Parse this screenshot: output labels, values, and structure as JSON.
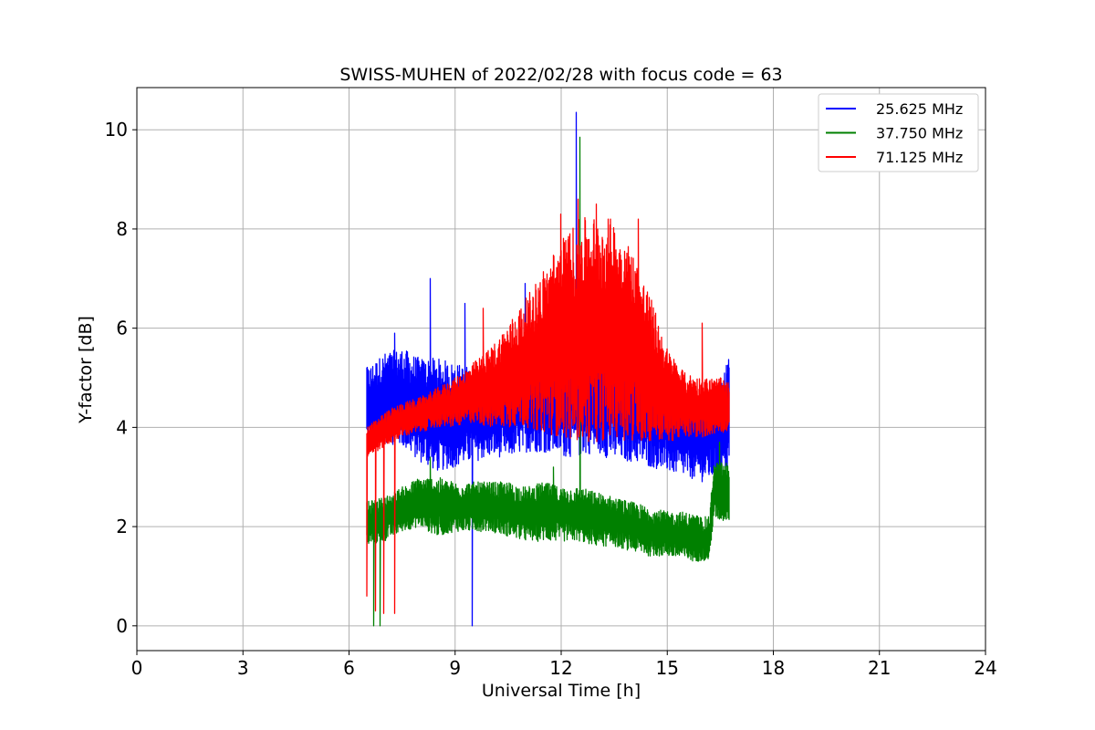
{
  "chart_data": {
    "type": "line",
    "title": "SWISS-MUHEN of 2022/02/28 with focus code = 63",
    "xlabel": "Universal Time [h]",
    "ylabel": "Y-factor [dB]",
    "xlim": [
      0,
      24
    ],
    "ylim": [
      -0.5,
      10.85
    ],
    "x_ticks": [
      0,
      3,
      6,
      9,
      12,
      15,
      18,
      21,
      24
    ],
    "y_ticks": [
      0,
      2,
      4,
      6,
      8,
      10
    ],
    "grid": true,
    "legend_position": "top-right",
    "series": [
      {
        "name": "25.625 MHz",
        "color": "#0000ff",
        "band": {
          "x": [
            6.5,
            7.0,
            7.5,
            8.0,
            8.5,
            9.0,
            9.5,
            10.0,
            10.5,
            11.0,
            11.5,
            12.0,
            12.5,
            13.0,
            13.5,
            14.0,
            14.5,
            15.0,
            15.5,
            16.0,
            16.5,
            16.75
          ],
          "lower": [
            3.6,
            3.7,
            3.6,
            3.3,
            3.1,
            3.2,
            3.3,
            3.4,
            3.4,
            3.5,
            3.5,
            3.4,
            3.4,
            3.5,
            3.3,
            3.3,
            3.2,
            3.1,
            3.0,
            2.9,
            3.0,
            3.1
          ],
          "upper": [
            5.2,
            5.5,
            5.6,
            5.4,
            5.4,
            5.3,
            5.2,
            5.2,
            5.3,
            5.6,
            6.0,
            6.2,
            6.2,
            6.0,
            6.0,
            5.8,
            5.2,
            5.0,
            4.8,
            4.7,
            5.0,
            5.4
          ]
        },
        "spikes": [
          [
            6.5,
            5.2
          ],
          [
            7.3,
            5.9
          ],
          [
            8.3,
            7.0
          ],
          [
            9.3,
            6.5
          ],
          [
            9.5,
            0.0
          ],
          [
            11.0,
            6.9
          ],
          [
            12.43,
            10.35
          ],
          [
            16.8,
            5.9
          ]
        ]
      },
      {
        "name": "37.750 MHz",
        "color": "#008000",
        "band": {
          "x": [
            6.5,
            7.0,
            7.5,
            8.0,
            8.5,
            9.0,
            9.5,
            10.0,
            10.5,
            11.0,
            11.5,
            12.0,
            12.5,
            13.0,
            13.5,
            14.0,
            14.5,
            15.0,
            15.5,
            16.0,
            16.2,
            16.3,
            16.75
          ],
          "lower": [
            1.6,
            1.7,
            1.9,
            2.0,
            1.8,
            1.9,
            1.9,
            1.9,
            1.8,
            1.7,
            1.7,
            1.7,
            1.7,
            1.6,
            1.6,
            1.5,
            1.4,
            1.4,
            1.3,
            1.3,
            1.3,
            2.1,
            2.1
          ],
          "upper": [
            2.5,
            2.6,
            2.8,
            3.0,
            3.0,
            2.9,
            2.9,
            2.9,
            2.9,
            2.8,
            2.9,
            2.8,
            2.8,
            2.7,
            2.6,
            2.5,
            2.4,
            2.3,
            2.3,
            2.2,
            2.2,
            3.3,
            3.3
          ]
        },
        "spikes": [
          [
            6.7,
            0.0
          ],
          [
            6.9,
            0.0
          ],
          [
            8.3,
            3.4
          ],
          [
            11.8,
            3.2
          ],
          [
            12.55,
            9.85
          ],
          [
            16.5,
            3.7
          ]
        ]
      },
      {
        "name": "71.125 MHz",
        "color": "#ff0000",
        "band": {
          "x": [
            6.5,
            7.0,
            7.5,
            8.0,
            8.5,
            9.0,
            9.5,
            10.0,
            10.5,
            11.0,
            11.5,
            12.0,
            12.5,
            13.0,
            13.5,
            14.0,
            14.5,
            15.0,
            15.5,
            16.0,
            16.5,
            16.75
          ],
          "lower": [
            3.4,
            3.6,
            3.8,
            3.9,
            4.0,
            4.0,
            4.1,
            4.0,
            4.0,
            4.0,
            3.9,
            3.8,
            3.7,
            3.7,
            3.8,
            3.7,
            3.7,
            3.7,
            3.8,
            3.8,
            3.9,
            3.9
          ],
          "upper": [
            4.0,
            4.3,
            4.5,
            4.6,
            4.8,
            5.0,
            5.3,
            5.6,
            6.1,
            6.6,
            7.2,
            7.8,
            8.2,
            8.3,
            8.2,
            7.6,
            6.7,
            5.6,
            5.1,
            5.0,
            5.0,
            4.9
          ]
        },
        "spikes": [
          [
            6.5,
            0.6
          ],
          [
            6.75,
            0.3
          ],
          [
            7.0,
            0.25
          ],
          [
            7.3,
            0.25
          ],
          [
            9.8,
            6.4
          ],
          [
            12.0,
            8.3
          ],
          [
            12.5,
            8.6
          ],
          [
            13.0,
            8.5
          ],
          [
            14.2,
            8.2
          ],
          [
            16.0,
            6.1
          ]
        ]
      }
    ]
  }
}
